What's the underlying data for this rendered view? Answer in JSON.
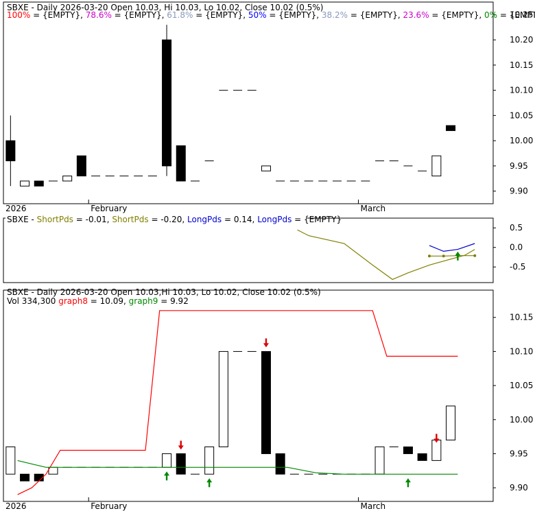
{
  "chart_data": [
    {
      "type": "candlestick",
      "ticker": "SBXE",
      "header": "SBXE - Daily 2026-03-20 Open 10.03, Hi 10.03, Lo 10.02, Close 10.02 (0.5%)",
      "fib_legend": [
        {
          "label": "100%",
          "value": "{EMPTY}",
          "color": "#ff0000"
        },
        {
          "label": "78.6%",
          "value": "{EMPTY}",
          "color": "#cc00cc"
        },
        {
          "label": "61.8%",
          "value": "{EMPTY}",
          "color": "#8899bb"
        },
        {
          "label": "50%",
          "value": "{EMPTY}",
          "color": "#0000ff"
        },
        {
          "label": "38.2%",
          "value": "{EMPTY}",
          "color": "#8899bb"
        },
        {
          "label": "23.6%",
          "value": "{EMPTY}",
          "color": "#cc00cc"
        },
        {
          "label": "0%",
          "value": "{EMPTY}",
          "color": "#008800"
        }
      ],
      "ylim": [
        9.875,
        10.275
      ],
      "yticks": [
        "10.25",
        "10.20",
        "10.15",
        "10.10",
        "10.05",
        "10.00",
        "9.95",
        "9.90"
      ],
      "x_labels": [
        {
          "label": "2026",
          "i": 0
        },
        {
          "label": "February",
          "i": 6
        },
        {
          "label": "March",
          "i": 25
        }
      ],
      "candles": [
        {
          "i": 0,
          "o": 10.0,
          "h": 10.05,
          "l": 9.91,
          "c": 9.96
        },
        {
          "i": 1,
          "o": 9.91,
          "h": 9.92,
          "l": 9.91,
          "c": 9.92
        },
        {
          "i": 2,
          "o": 9.92,
          "h": 9.92,
          "l": 9.91,
          "c": 9.91
        },
        {
          "i": 3,
          "o": 9.92,
          "h": 9.92,
          "l": 9.92,
          "c": 9.92
        },
        {
          "i": 4,
          "o": 9.92,
          "h": 9.93,
          "l": 9.92,
          "c": 9.93
        },
        {
          "i": 5,
          "o": 9.97,
          "h": 9.97,
          "l": 9.93,
          "c": 9.93
        },
        {
          "i": 6,
          "o": 9.93,
          "h": 9.93,
          "l": 9.93,
          "c": 9.93
        },
        {
          "i": 7,
          "o": 9.93,
          "h": 9.93,
          "l": 9.93,
          "c": 9.93
        },
        {
          "i": 8,
          "o": 9.93,
          "h": 9.93,
          "l": 9.93,
          "c": 9.93
        },
        {
          "i": 9,
          "o": 9.93,
          "h": 9.93,
          "l": 9.93,
          "c": 9.93
        },
        {
          "i": 10,
          "o": 9.93,
          "h": 9.93,
          "l": 9.93,
          "c": 9.93
        },
        {
          "i": 11,
          "o": 10.2,
          "h": 10.23,
          "l": 9.93,
          "c": 9.95
        },
        {
          "i": 12,
          "o": 9.99,
          "h": 9.99,
          "l": 9.92,
          "c": 9.92
        },
        {
          "i": 13,
          "o": 9.92,
          "h": 9.92,
          "l": 9.92,
          "c": 9.92
        },
        {
          "i": 14,
          "o": 9.96,
          "h": 9.96,
          "l": 9.96,
          "c": 9.96
        },
        {
          "i": 15,
          "o": 10.1,
          "h": 10.1,
          "l": 10.1,
          "c": 10.1
        },
        {
          "i": 16,
          "o": 10.1,
          "h": 10.1,
          "l": 10.1,
          "c": 10.1
        },
        {
          "i": 17,
          "o": 10.1,
          "h": 10.1,
          "l": 10.1,
          "c": 10.1
        },
        {
          "i": 18,
          "o": 9.94,
          "h": 9.95,
          "l": 9.94,
          "c": 9.95
        },
        {
          "i": 19,
          "o": 9.92,
          "h": 9.92,
          "l": 9.92,
          "c": 9.92
        },
        {
          "i": 20,
          "o": 9.92,
          "h": 9.92,
          "l": 9.92,
          "c": 9.92
        },
        {
          "i": 21,
          "o": 9.92,
          "h": 9.92,
          "l": 9.92,
          "c": 9.92
        },
        {
          "i": 22,
          "o": 9.92,
          "h": 9.92,
          "l": 9.92,
          "c": 9.92
        },
        {
          "i": 23,
          "o": 9.92,
          "h": 9.92,
          "l": 9.92,
          "c": 9.92
        },
        {
          "i": 24,
          "o": 9.92,
          "h": 9.92,
          "l": 9.92,
          "c": 9.92
        },
        {
          "i": 25,
          "o": 9.92,
          "h": 9.92,
          "l": 9.92,
          "c": 9.92
        },
        {
          "i": 26,
          "o": 9.96,
          "h": 9.96,
          "l": 9.96,
          "c": 9.96
        },
        {
          "i": 27,
          "o": 9.96,
          "h": 9.96,
          "l": 9.96,
          "c": 9.96
        },
        {
          "i": 28,
          "o": 9.95,
          "h": 9.95,
          "l": 9.95,
          "c": 9.95
        },
        {
          "i": 29,
          "o": 9.94,
          "h": 9.94,
          "l": 9.94,
          "c": 9.94
        },
        {
          "i": 30,
          "o": 9.93,
          "h": 9.97,
          "l": 9.93,
          "c": 9.97
        },
        {
          "i": 31,
          "o": 10.03,
          "h": 10.03,
          "l": 10.02,
          "c": 10.02
        }
      ]
    },
    {
      "type": "line",
      "header_parts": [
        {
          "text": "SBXE - ",
          "color": "#000000"
        },
        {
          "text": "ShortPds",
          "color": "#808000"
        },
        {
          "text": " = -0.01, ",
          "color": "#000000"
        },
        {
          "text": "ShortPds",
          "color": "#808000"
        },
        {
          "text": " = -0.20, ",
          "color": "#000000"
        },
        {
          "text": "LongPds",
          "color": "#0000cc"
        },
        {
          "text": " = 0.14, ",
          "color": "#000000"
        },
        {
          "text": "LongPds",
          "color": "#0000cc"
        },
        {
          "text": " = {EMPTY}",
          "color": "#000000"
        }
      ],
      "ylim": [
        -0.9,
        0.75
      ],
      "yticks": [
        "0.5",
        "0.0",
        "-0.5"
      ],
      "series": [
        {
          "color": "#808000",
          "points": [
            [
              20.7,
              0.45
            ],
            [
              21.5,
              0.3
            ],
            [
              24,
              0.1
            ],
            [
              26,
              -0.45
            ],
            [
              27.4,
              -0.82
            ],
            [
              28.5,
              -0.65
            ],
            [
              30,
              -0.45
            ],
            [
              32.5,
              -0.2
            ],
            [
              33.2,
              -0.05
            ]
          ]
        },
        {
          "color": "#808000",
          "points": [
            [
              30,
              -0.22
            ],
            [
              31,
              -0.22
            ],
            [
              32,
              -0.21
            ],
            [
              33.2,
              -0.21
            ]
          ],
          "markers": true
        },
        {
          "color": "#0000cc",
          "points": [
            [
              30,
              0.05
            ],
            [
              31,
              -0.1
            ],
            [
              32,
              -0.05
            ],
            [
              33.2,
              0.1
            ]
          ]
        }
      ],
      "arrows": [
        {
          "i": 31.5,
          "v": 0.0,
          "dir": "up",
          "color": "#008800"
        }
      ]
    },
    {
      "type": "candlestick",
      "header": "SBXE - Daily 2026-03-20 Open 10.03,Hi 10.03, Lo 10.02, Close 10.02 (0.5%)",
      "legend_parts": [
        {
          "text": "Vol 334,300 ",
          "color": "#000000"
        },
        {
          "text": "graph8",
          "color": "#ff0000"
        },
        {
          "text": " = 10.09, ",
          "color": "#000000"
        },
        {
          "text": "graph9",
          "color": "#008800"
        },
        {
          "text": " = 9.92",
          "color": "#000000"
        }
      ],
      "ylim": [
        9.88,
        10.19
      ],
      "yticks": [
        "10.15",
        "10.10",
        "10.05",
        "10.00",
        "9.95",
        "9.90"
      ],
      "x_labels": [
        {
          "label": "2026",
          "i": 0
        },
        {
          "label": "February",
          "i": 6
        },
        {
          "label": "March",
          "i": 25
        }
      ],
      "candles": [
        {
          "i": 0,
          "o": 9.92,
          "h": 9.96,
          "l": 9.92,
          "c": 9.96
        },
        {
          "i": 1,
          "o": 9.92,
          "h": 9.92,
          "l": 9.91,
          "c": 9.91
        },
        {
          "i": 2,
          "o": 9.92,
          "h": 9.92,
          "l": 9.91,
          "c": 9.91
        },
        {
          "i": 3,
          "o": 9.92,
          "h": 9.93,
          "l": 9.92,
          "c": 9.93
        },
        {
          "i": 4,
          "o": 9.93,
          "h": 9.93,
          "l": 9.93,
          "c": 9.93
        },
        {
          "i": 5,
          "o": 9.93,
          "h": 9.93,
          "l": 9.93,
          "c": 9.93
        },
        {
          "i": 6,
          "o": 9.93,
          "h": 9.93,
          "l": 9.93,
          "c": 9.93
        },
        {
          "i": 7,
          "o": 9.93,
          "h": 9.93,
          "l": 9.93,
          "c": 9.93
        },
        {
          "i": 8,
          "o": 9.93,
          "h": 9.93,
          "l": 9.93,
          "c": 9.93
        },
        {
          "i": 9,
          "o": 9.93,
          "h": 9.93,
          "l": 9.93,
          "c": 9.93
        },
        {
          "i": 10,
          "o": 9.93,
          "h": 9.93,
          "l": 9.93,
          "c": 9.93
        },
        {
          "i": 11,
          "o": 9.93,
          "h": 9.95,
          "l": 9.93,
          "c": 9.95
        },
        {
          "i": 12,
          "o": 9.95,
          "h": 9.95,
          "l": 9.92,
          "c": 9.92
        },
        {
          "i": 13,
          "o": 9.92,
          "h": 9.92,
          "l": 9.92,
          "c": 9.92
        },
        {
          "i": 14,
          "o": 9.92,
          "h": 9.96,
          "l": 9.92,
          "c": 9.96
        },
        {
          "i": 15,
          "o": 9.96,
          "h": 10.1,
          "l": 9.96,
          "c": 10.1
        },
        {
          "i": 16,
          "o": 10.1,
          "h": 10.1,
          "l": 10.1,
          "c": 10.1
        },
        {
          "i": 17,
          "o": 10.1,
          "h": 10.1,
          "l": 10.1,
          "c": 10.1
        },
        {
          "i": 18,
          "o": 10.1,
          "h": 10.1,
          "l": 9.95,
          "c": 9.95
        },
        {
          "i": 19,
          "o": 9.95,
          "h": 9.95,
          "l": 9.92,
          "c": 9.92
        },
        {
          "i": 20,
          "o": 9.92,
          "h": 9.92,
          "l": 9.92,
          "c": 9.92
        },
        {
          "i": 21,
          "o": 9.92,
          "h": 9.92,
          "l": 9.92,
          "c": 9.92
        },
        {
          "i": 22,
          "o": 9.92,
          "h": 9.92,
          "l": 9.92,
          "c": 9.92
        },
        {
          "i": 23,
          "o": 9.92,
          "h": 9.92,
          "l": 9.92,
          "c": 9.92
        },
        {
          "i": 24,
          "o": 9.92,
          "h": 9.92,
          "l": 9.92,
          "c": 9.92
        },
        {
          "i": 25,
          "o": 9.92,
          "h": 9.92,
          "l": 9.92,
          "c": 9.92
        },
        {
          "i": 26,
          "o": 9.92,
          "h": 9.96,
          "l": 9.92,
          "c": 9.96
        },
        {
          "i": 27,
          "o": 9.96,
          "h": 9.96,
          "l": 9.96,
          "c": 9.96
        },
        {
          "i": 28,
          "o": 9.96,
          "h": 9.96,
          "l": 9.95,
          "c": 9.95
        },
        {
          "i": 29,
          "o": 9.95,
          "h": 9.95,
          "l": 9.94,
          "c": 9.94
        },
        {
          "i": 30,
          "o": 9.94,
          "h": 9.97,
          "l": 9.94,
          "c": 9.97
        },
        {
          "i": 31,
          "o": 9.97,
          "h": 10.02,
          "l": 9.97,
          "c": 10.02
        }
      ],
      "series": [
        {
          "name": "graph8",
          "color": "#ff0000",
          "points": [
            [
              1,
              9.89
            ],
            [
              2,
              9.9
            ],
            [
              3,
              9.92
            ],
            [
              4,
              9.955
            ],
            [
              5,
              9.955
            ],
            [
              6,
              9.955
            ],
            [
              7,
              9.955
            ],
            [
              8,
              9.955
            ],
            [
              9,
              9.955
            ],
            [
              10,
              9.955
            ],
            [
              11,
              10.16
            ],
            [
              12,
              10.16
            ],
            [
              13,
              10.16
            ],
            [
              14,
              10.16
            ],
            [
              15,
              10.16
            ],
            [
              16,
              10.16
            ],
            [
              17,
              10.16
            ],
            [
              18,
              10.16
            ],
            [
              19,
              10.16
            ],
            [
              20,
              10.16
            ],
            [
              21,
              10.16
            ],
            [
              22,
              10.16
            ],
            [
              23,
              10.16
            ],
            [
              24,
              10.16
            ],
            [
              25,
              10.16
            ],
            [
              26,
              10.16
            ],
            [
              27,
              10.093
            ],
            [
              28,
              10.093
            ],
            [
              29,
              10.093
            ],
            [
              30,
              10.093
            ],
            [
              31,
              10.093
            ],
            [
              32,
              10.093
            ]
          ]
        },
        {
          "name": "graph9",
          "color": "#008800",
          "points": [
            [
              1,
              9.94
            ],
            [
              2,
              9.935
            ],
            [
              3,
              9.93
            ],
            [
              4,
              9.93
            ],
            [
              5,
              9.93
            ],
            [
              6,
              9.93
            ],
            [
              7,
              9.93
            ],
            [
              8,
              9.93
            ],
            [
              9,
              9.93
            ],
            [
              10,
              9.93
            ],
            [
              11,
              9.93
            ],
            [
              12,
              9.93
            ],
            [
              13,
              9.93
            ],
            [
              14,
              9.93
            ],
            [
              15,
              9.93
            ],
            [
              16,
              9.93
            ],
            [
              17,
              9.93
            ],
            [
              18,
              9.93
            ],
            [
              19,
              9.93
            ],
            [
              20,
              9.93
            ],
            [
              21,
              9.926
            ],
            [
              22,
              9.922
            ],
            [
              23,
              9.921
            ],
            [
              24,
              9.92
            ],
            [
              25,
              9.92
            ],
            [
              26,
              9.92
            ],
            [
              27,
              9.92
            ],
            [
              28,
              9.92
            ],
            [
              29,
              9.92
            ],
            [
              30,
              9.92
            ],
            [
              31,
              9.92
            ],
            [
              32,
              9.92
            ]
          ]
        }
      ],
      "arrows": [
        {
          "i": 11,
          "v": 9.93,
          "dir": "up",
          "color": "#008800"
        },
        {
          "i": 12,
          "v": 9.95,
          "dir": "down",
          "color": "#dd0000"
        },
        {
          "i": 14,
          "v": 9.92,
          "dir": "up",
          "color": "#008800"
        },
        {
          "i": 18,
          "v": 10.1,
          "dir": "down",
          "color": "#dd0000"
        },
        {
          "i": 28,
          "v": 9.92,
          "dir": "up",
          "color": "#008800"
        },
        {
          "i": 30,
          "v": 9.96,
          "dir": "down",
          "color": "#dd0000"
        }
      ]
    }
  ]
}
